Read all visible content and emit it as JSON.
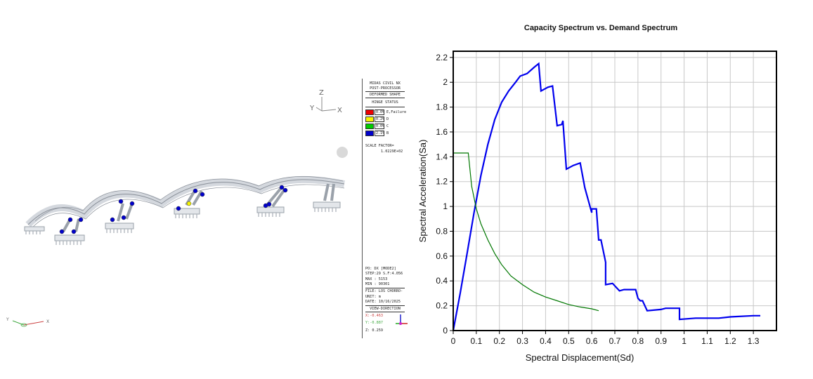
{
  "viewport": {
    "axis_top": {
      "z": "Z",
      "y": "Y",
      "x": "X"
    },
    "axis_bottom": {
      "y": "Y",
      "x": "X"
    }
  },
  "legend": {
    "lines": [
      "MIDAS CIVIL NX",
      "POST-PROCESSOR",
      "DEFORMED SHAPE",
      "HINGE STATUS"
    ],
    "hinges": [
      {
        "pct": "0.0%",
        "name": "E,Failure",
        "color": "#ee0000"
      },
      {
        "pct": "0.2%",
        "name": "D",
        "color": "#f5f500"
      },
      {
        "pct": "0.0%",
        "name": "C",
        "color": "#00cc00"
      },
      {
        "pct": "2.1%",
        "name": "B",
        "color": "#0000cc"
      }
    ],
    "scale_label": "SCALE FACTOR=",
    "scale_value": "1.0229E+02",
    "info": [
      "PO: DX [MODE2]",
      "STEP:29 S.F:4.056",
      "MAX : 5153",
      "MIN : 90301",
      "FILE: LOS CHORRO-",
      "UNIT: m",
      "DATE: 10/16/2025"
    ],
    "view_direction": "VIEW-DIRECTION",
    "view_x": "X:-0.463",
    "view_y": "Y:-0.887",
    "view_z": "Z: 0.259"
  },
  "chart_data": {
    "type": "line",
    "title": "Capacity Spectrum vs. Demand Spectrum",
    "xlabel": "Spectral Displacement(Sd)",
    "ylabel": "Spectral Acceleration(Sa)",
    "xlim": [
      0,
      1.4
    ],
    "ylim": [
      0,
      2.25
    ],
    "xticks": [
      0,
      0.1,
      0.2,
      0.3,
      0.4,
      0.5,
      0.6,
      0.7,
      0.8,
      0.9,
      1,
      1.1,
      1.2,
      1.3
    ],
    "yticks": [
      0,
      0.2,
      0.4,
      0.6,
      0.8,
      1,
      1.2,
      1.4,
      1.6,
      1.8,
      2,
      2.2
    ],
    "grid": true,
    "series": [
      {
        "color": "#0000ee",
        "points": [
          [
            0,
            0
          ],
          [
            0.03,
            0.3
          ],
          [
            0.06,
            0.62
          ],
          [
            0.09,
            0.95
          ],
          [
            0.12,
            1.25
          ],
          [
            0.15,
            1.5
          ],
          [
            0.18,
            1.7
          ],
          [
            0.21,
            1.84
          ],
          [
            0.24,
            1.93
          ],
          [
            0.27,
            2.0
          ],
          [
            0.29,
            2.05
          ],
          [
            0.32,
            2.07
          ],
          [
            0.35,
            2.12
          ],
          [
            0.37,
            2.15
          ],
          [
            0.38,
            1.93
          ],
          [
            0.41,
            1.96
          ],
          [
            0.43,
            1.97
          ],
          [
            0.45,
            1.65
          ],
          [
            0.47,
            1.66
          ],
          [
            0.475,
            1.69
          ],
          [
            0.49,
            1.3
          ],
          [
            0.52,
            1.33
          ],
          [
            0.55,
            1.35
          ],
          [
            0.57,
            1.15
          ],
          [
            0.6,
            0.95
          ],
          [
            0.6,
            0.98
          ],
          [
            0.62,
            0.98
          ],
          [
            0.63,
            0.73
          ],
          [
            0.64,
            0.73
          ],
          [
            0.66,
            0.55
          ],
          [
            0.66,
            0.37
          ],
          [
            0.69,
            0.38
          ],
          [
            0.72,
            0.32
          ],
          [
            0.74,
            0.33
          ],
          [
            0.77,
            0.33
          ],
          [
            0.79,
            0.33
          ],
          [
            0.8,
            0.26
          ],
          [
            0.81,
            0.24
          ],
          [
            0.82,
            0.24
          ],
          [
            0.84,
            0.16
          ],
          [
            0.9,
            0.17
          ],
          [
            0.92,
            0.18
          ],
          [
            0.98,
            0.18
          ],
          [
            0.98,
            0.09
          ],
          [
            1.05,
            0.1
          ],
          [
            1.15,
            0.1
          ],
          [
            1.2,
            0.11
          ],
          [
            1.3,
            0.12
          ],
          [
            1.33,
            0.12
          ]
        ]
      },
      {
        "color": "#007700",
        "points": [
          [
            0,
            1.32
          ],
          [
            0,
            1.43
          ],
          [
            0.065,
            1.43
          ],
          [
            0.065,
            1.43
          ],
          [
            0.08,
            1.16
          ],
          [
            0.1,
            0.98
          ],
          [
            0.12,
            0.86
          ],
          [
            0.15,
            0.73
          ],
          [
            0.18,
            0.62
          ],
          [
            0.21,
            0.53
          ],
          [
            0.25,
            0.44
          ],
          [
            0.3,
            0.37
          ],
          [
            0.35,
            0.31
          ],
          [
            0.4,
            0.27
          ],
          [
            0.45,
            0.24
          ],
          [
            0.5,
            0.21
          ],
          [
            0.55,
            0.19
          ],
          [
            0.6,
            0.175
          ],
          [
            0.63,
            0.16
          ]
        ]
      }
    ]
  }
}
